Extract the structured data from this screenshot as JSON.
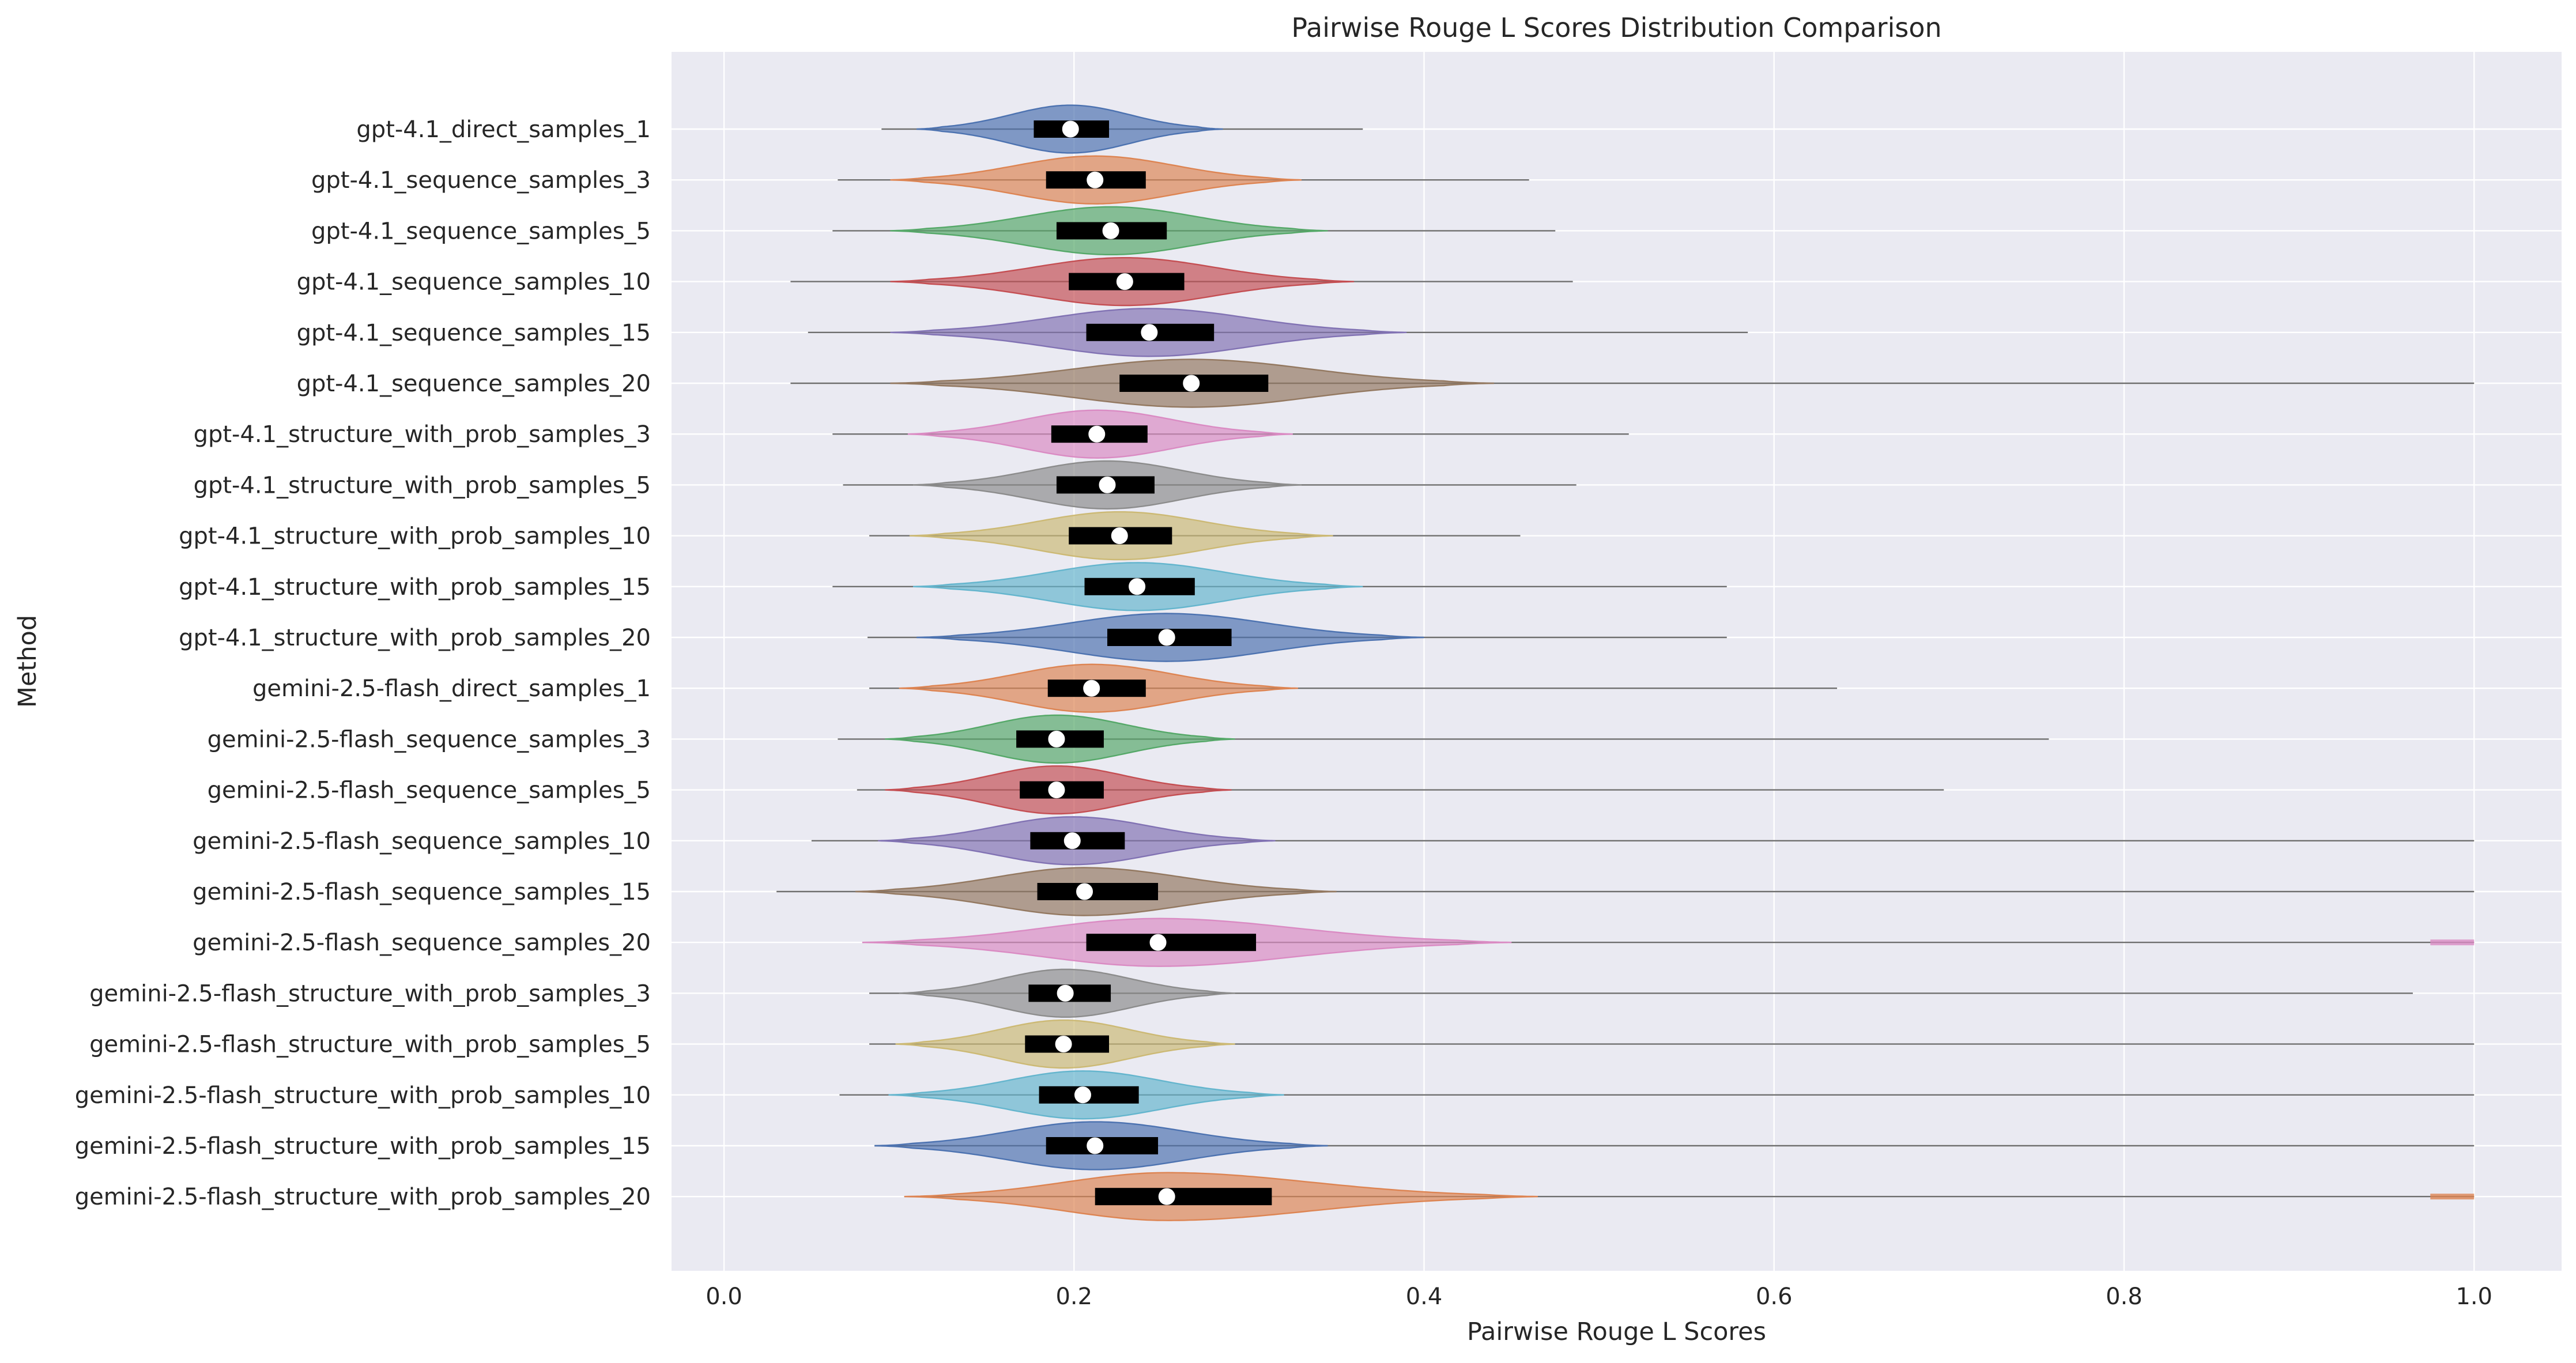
{
  "chart_data": {
    "type": "violin",
    "title": "Pairwise Rouge L Scores Distribution Comparison",
    "xlabel": "Pairwise Rouge L Scores",
    "ylabel": "Method",
    "xlim": [
      -0.03,
      1.05
    ],
    "xticks": [
      0.0,
      0.2,
      0.4,
      0.6,
      0.8,
      1.0
    ],
    "xtick_labels": [
      "0.0",
      "0.2",
      "0.4",
      "0.6",
      "0.8",
      "1.0"
    ],
    "grid": true,
    "orientation": "horizontal",
    "series": [
      {
        "name": "gpt-4.1_direct_samples_1",
        "color": "#4c72b0",
        "min": 0.09,
        "q1": 0.177,
        "median": 0.198,
        "q3": 0.22,
        "max": 0.365,
        "dens_hw": 0.45,
        "dens_lo": 0.11,
        "dens_hi": 0.285
      },
      {
        "name": "gpt-4.1_sequence_samples_3",
        "color": "#dd8452",
        "min": 0.065,
        "q1": 0.184,
        "median": 0.212,
        "q3": 0.241,
        "max": 0.46,
        "dens_hw": 0.45,
        "dens_lo": 0.095,
        "dens_hi": 0.33
      },
      {
        "name": "gpt-4.1_sequence_samples_5",
        "color": "#55a868",
        "min": 0.062,
        "q1": 0.19,
        "median": 0.221,
        "q3": 0.253,
        "max": 0.475,
        "dens_hw": 0.45,
        "dens_lo": 0.095,
        "dens_hi": 0.345
      },
      {
        "name": "gpt-4.1_sequence_samples_10",
        "color": "#c44e52",
        "min": 0.038,
        "q1": 0.197,
        "median": 0.229,
        "q3": 0.263,
        "max": 0.485,
        "dens_hw": 0.45,
        "dens_lo": 0.095,
        "dens_hi": 0.36
      },
      {
        "name": "gpt-4.1_sequence_samples_15",
        "color": "#8172b3",
        "min": 0.048,
        "q1": 0.207,
        "median": 0.243,
        "q3": 0.28,
        "max": 0.585,
        "dens_hw": 0.45,
        "dens_lo": 0.095,
        "dens_hi": 0.39
      },
      {
        "name": "gpt-4.1_sequence_samples_20",
        "color": "#937860",
        "min": 0.038,
        "q1": 0.226,
        "median": 0.267,
        "q3": 0.311,
        "max": 1.0,
        "dens_hw": 0.45,
        "dens_lo": 0.095,
        "dens_hi": 0.44
      },
      {
        "name": "gpt-4.1_structure_with_prob_samples_3",
        "color": "#da8bc3",
        "min": 0.062,
        "q1": 0.187,
        "median": 0.213,
        "q3": 0.242,
        "max": 0.517,
        "dens_hw": 0.45,
        "dens_lo": 0.105,
        "dens_hi": 0.325
      },
      {
        "name": "gpt-4.1_structure_with_prob_samples_5",
        "color": "#8c8c8c",
        "min": 0.068,
        "q1": 0.19,
        "median": 0.219,
        "q3": 0.246,
        "max": 0.487,
        "dens_hw": 0.45,
        "dens_lo": 0.108,
        "dens_hi": 0.33
      },
      {
        "name": "gpt-4.1_structure_with_prob_samples_10",
        "color": "#ccb974",
        "min": 0.083,
        "q1": 0.197,
        "median": 0.226,
        "q3": 0.256,
        "max": 0.455,
        "dens_hw": 0.45,
        "dens_lo": 0.106,
        "dens_hi": 0.348
      },
      {
        "name": "gpt-4.1_structure_with_prob_samples_15",
        "color": "#64b5cd",
        "min": 0.062,
        "q1": 0.206,
        "median": 0.236,
        "q3": 0.269,
        "max": 0.573,
        "dens_hw": 0.45,
        "dens_lo": 0.108,
        "dens_hi": 0.365
      },
      {
        "name": "gpt-4.1_structure_with_prob_samples_20",
        "color": "#4c72b0",
        "min": 0.082,
        "q1": 0.219,
        "median": 0.253,
        "q3": 0.29,
        "max": 0.573,
        "dens_hw": 0.45,
        "dens_lo": 0.11,
        "dens_hi": 0.4
      },
      {
        "name": "gemini-2.5-flash_direct_samples_1",
        "color": "#dd8452",
        "min": 0.083,
        "q1": 0.185,
        "median": 0.21,
        "q3": 0.241,
        "max": 0.636,
        "dens_hw": 0.45,
        "dens_lo": 0.1,
        "dens_hi": 0.328
      },
      {
        "name": "gemini-2.5-flash_sequence_samples_3",
        "color": "#55a868",
        "min": 0.065,
        "q1": 0.167,
        "median": 0.19,
        "q3": 0.217,
        "max": 0.757,
        "dens_hw": 0.45,
        "dens_lo": 0.092,
        "dens_hi": 0.292
      },
      {
        "name": "gemini-2.5-flash_sequence_samples_5",
        "color": "#c44e52",
        "min": 0.076,
        "q1": 0.169,
        "median": 0.19,
        "q3": 0.217,
        "max": 0.697,
        "dens_hw": 0.45,
        "dens_lo": 0.092,
        "dens_hi": 0.29
      },
      {
        "name": "gemini-2.5-flash_sequence_samples_10",
        "color": "#8172b3",
        "min": 0.05,
        "q1": 0.175,
        "median": 0.199,
        "q3": 0.229,
        "max": 1.0,
        "dens_hw": 0.45,
        "dens_lo": 0.088,
        "dens_hi": 0.315
      },
      {
        "name": "gemini-2.5-flash_sequence_samples_15",
        "color": "#937860",
        "min": 0.03,
        "q1": 0.179,
        "median": 0.206,
        "q3": 0.248,
        "max": 1.0,
        "dens_hw": 0.45,
        "dens_lo": 0.075,
        "dens_hi": 0.35
      },
      {
        "name": "gemini-2.5-flash_sequence_samples_20",
        "color": "#da8bc3",
        "min": 0.079,
        "q1": 0.207,
        "median": 0.248,
        "q3": 0.304,
        "max": 1.0,
        "dens_hw": 0.45,
        "dens_lo": 0.079,
        "dens_hi": 0.45
      },
      {
        "name": "gemini-2.5-flash_structure_with_prob_samples_3",
        "color": "#8c8c8c",
        "min": 0.083,
        "q1": 0.174,
        "median": 0.195,
        "q3": 0.221,
        "max": 0.965,
        "dens_hw": 0.45,
        "dens_lo": 0.1,
        "dens_hi": 0.292
      },
      {
        "name": "gemini-2.5-flash_structure_with_prob_samples_5",
        "color": "#ccb974",
        "min": 0.083,
        "q1": 0.172,
        "median": 0.194,
        "q3": 0.22,
        "max": 1.0,
        "dens_hw": 0.45,
        "dens_lo": 0.098,
        "dens_hi": 0.292
      },
      {
        "name": "gemini-2.5-flash_structure_with_prob_samples_10",
        "color": "#64b5cd",
        "min": 0.066,
        "q1": 0.18,
        "median": 0.205,
        "q3": 0.237,
        "max": 1.0,
        "dens_hw": 0.45,
        "dens_lo": 0.094,
        "dens_hi": 0.32
      },
      {
        "name": "gemini-2.5-flash_structure_with_prob_samples_15",
        "color": "#4c72b0",
        "min": 0.086,
        "q1": 0.184,
        "median": 0.212,
        "q3": 0.248,
        "max": 1.0,
        "dens_hw": 0.45,
        "dens_lo": 0.086,
        "dens_hi": 0.345
      },
      {
        "name": "gemini-2.5-flash_structure_with_prob_samples_20",
        "color": "#dd8452",
        "min": 0.103,
        "q1": 0.212,
        "median": 0.253,
        "q3": 0.313,
        "max": 1.0,
        "dens_hw": 0.45,
        "dens_lo": 0.103,
        "dens_hi": 0.465
      }
    ]
  }
}
